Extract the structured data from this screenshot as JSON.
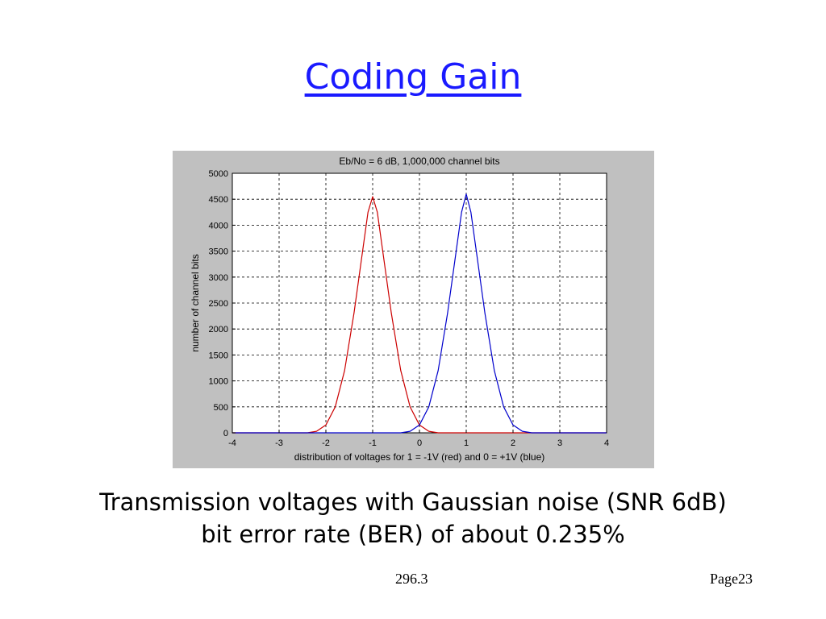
{
  "slide": {
    "title": "Coding Gain",
    "caption_line1": "Transmission voltages with Gaussian noise (SNR 6dB)",
    "caption_line2": "bit error rate (BER) of about 0.235%",
    "footer_center": "296.3",
    "footer_right": "Page23"
  },
  "chart_data": {
    "type": "line",
    "title": "Eb/No = 6 dB, 1,000,000 channel bits",
    "xlabel": "distribution of voltages for 1 = -1V (red) and 0 = +1V (blue)",
    "ylabel": "number of channel bits",
    "xlim": [
      -4,
      4
    ],
    "ylim": [
      0,
      5000
    ],
    "xticks": [
      -4,
      -3,
      -2,
      -1,
      0,
      1,
      2,
      3,
      4
    ],
    "yticks": [
      0,
      500,
      1000,
      1500,
      2000,
      2500,
      3000,
      3500,
      4000,
      4500,
      5000
    ],
    "grid": true,
    "series": [
      {
        "color": "#cc0000",
        "x": [
          -4,
          -2.4,
          -2.2,
          -2.0,
          -1.8,
          -1.6,
          -1.4,
          -1.2,
          -1.1,
          -1.0,
          -0.9,
          -0.8,
          -0.6,
          -0.4,
          -0.2,
          0.0,
          0.2,
          0.4,
          4
        ],
        "y": [
          0,
          0,
          30,
          150,
          500,
          1200,
          2300,
          3600,
          4250,
          4550,
          4250,
          3600,
          2300,
          1200,
          500,
          150,
          30,
          0,
          0
        ]
      },
      {
        "color": "#0000cc",
        "x": [
          -4,
          -0.4,
          -0.2,
          0.0,
          0.2,
          0.4,
          0.6,
          0.8,
          0.9,
          1.0,
          1.1,
          1.2,
          1.4,
          1.6,
          1.8,
          2.0,
          2.2,
          2.4,
          4
        ],
        "y": [
          0,
          0,
          30,
          150,
          500,
          1200,
          2300,
          3600,
          4250,
          4600,
          4250,
          3600,
          2300,
          1200,
          500,
          150,
          30,
          0,
          0
        ]
      }
    ]
  }
}
